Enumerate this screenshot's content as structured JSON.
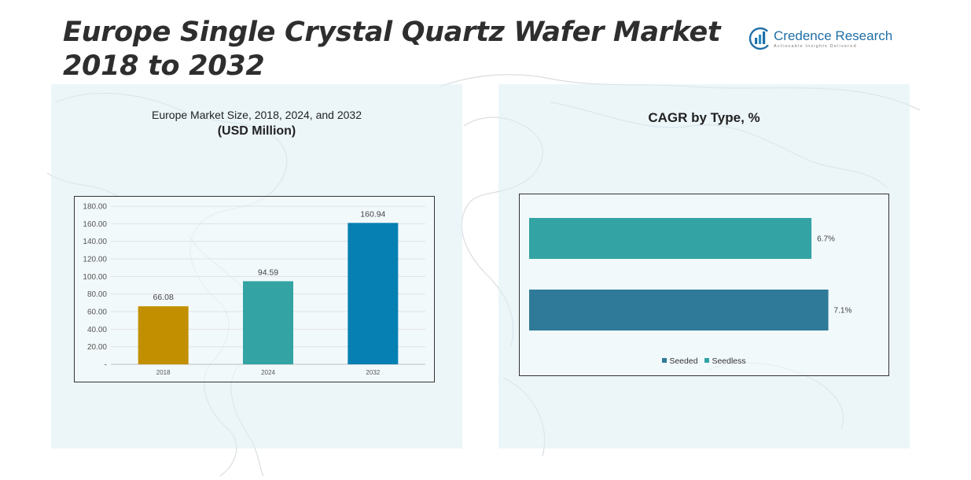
{
  "header": {
    "title": "Europe Single Crystal Quartz Wafer Market 2018 to 2032",
    "brand_name": "Credence Research",
    "brand_tagline": "Actionable Insights Delivered"
  },
  "left_panel": {
    "title_line1": "Europe Market Size, 2018, 2024, and 2032",
    "title_line2": "(USD Million)"
  },
  "right_panel": {
    "title": "CAGR by Type, %"
  },
  "colors": {
    "bar_2018": "#C28F00",
    "bar_2024": "#33A3A3",
    "bar_2032": "#0680B2",
    "seeded": "#2F7A98",
    "seedless": "#33A3A3",
    "panel_bg": "#DDEEF4",
    "brand": "#1F6FA8"
  },
  "chart_data": [
    {
      "type": "bar",
      "title": "Europe Market Size, 2018, 2024, and 2032",
      "subtitle": "(USD Million)",
      "categories": [
        "2018",
        "2024",
        "2032"
      ],
      "values": [
        66.08,
        94.59,
        160.94
      ],
      "value_labels": [
        "66.08",
        "94.59",
        "160.94"
      ],
      "ylim": [
        0,
        180
      ],
      "yticks": [
        "-",
        "20.00",
        "40.00",
        "60.00",
        "80.00",
        "100.00",
        "120.00",
        "140.00",
        "160.00",
        "180.00"
      ],
      "grid": true,
      "legend": "none"
    },
    {
      "type": "bar",
      "orientation": "horizontal",
      "title": "CAGR by Type, %",
      "categories": [
        "Seedless",
        "Seeded"
      ],
      "values": [
        6.7,
        7.1
      ],
      "value_labels": [
        "6.7%",
        "7.1%"
      ],
      "legend": "bottom",
      "legend_entries": [
        "Seeded",
        "Seedless"
      ]
    }
  ]
}
